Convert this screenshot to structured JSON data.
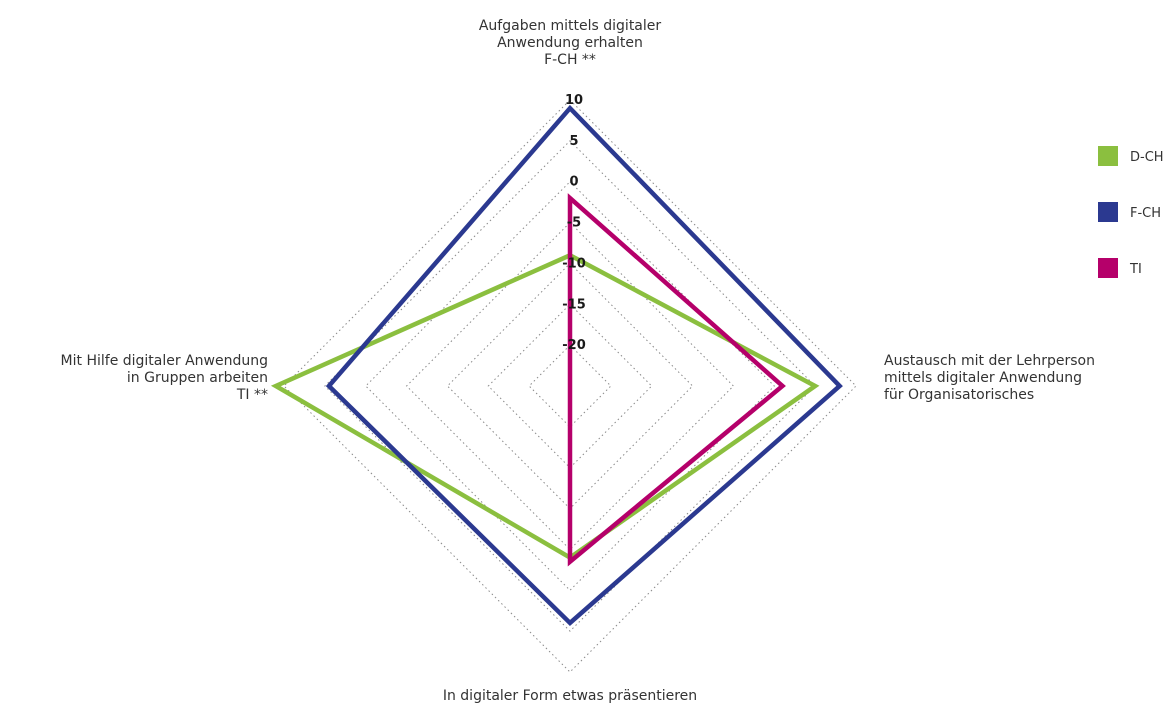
{
  "chart_data": {
    "type": "radar",
    "axes": [
      {
        "lines": [
          "Aufgaben mittels digitaler",
          "Anwendung erhalten",
          "F-CH **"
        ]
      },
      {
        "lines": [
          "Austausch mit der Lehrperson",
          "mittels digitaler Anwendung",
          "für Organisatorisches"
        ]
      },
      {
        "lines": [
          "In digitaler Form etwas präsentieren"
        ]
      },
      {
        "lines": [
          "Mit Hilfe digitaler Anwendung",
          "in Gruppen arbeiten",
          "TI **"
        ]
      }
    ],
    "ticks": [
      -20,
      -15,
      -10,
      -5,
      0,
      5,
      10
    ],
    "tick_labels": [
      "-20",
      "-15",
      "-10",
      "-5",
      "0",
      "5",
      "10"
    ],
    "range": [
      -25,
      10
    ],
    "grid": "dotted",
    "legend_position": "right",
    "series": [
      {
        "name": "D-CH",
        "color": "#8bbf3f",
        "values": [
          -9,
          5,
          -4,
          11
        ]
      },
      {
        "name": "F-CH",
        "color": "#2b3990",
        "values": [
          9,
          8,
          4,
          4.5
        ]
      },
      {
        "name": "TI",
        "color": "#b5006a",
        "values": [
          -2,
          1,
          -3.5,
          -25
        ]
      }
    ]
  }
}
